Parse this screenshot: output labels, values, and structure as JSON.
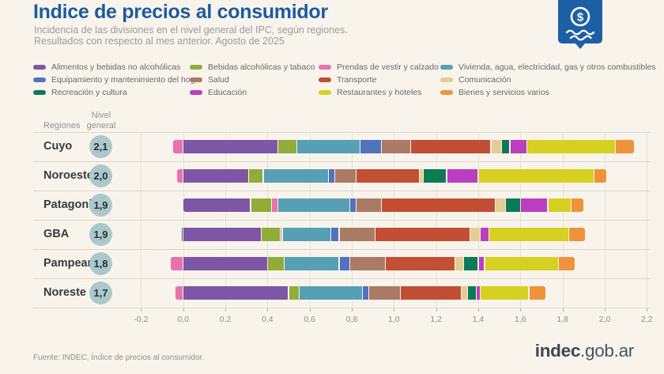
{
  "header": {
    "title": "Indice de precios al consumidor",
    "subtitle_line1": "Incidencia de las divisiones en el nivel general del IPC, según regiones.",
    "subtitle_line2": "Resultados con respecto al mes anterior. Agosto de 2025",
    "logo_symbol": "$",
    "logo_color": "#1c5fa5"
  },
  "table": {
    "col1_header": "Regiones",
    "col2_header_line1": "Nivel",
    "col2_header_line2": "general",
    "circle_color": "#abc9cc"
  },
  "chart_data": {
    "type": "bar",
    "orientation": "horizontal",
    "stacked": true,
    "grid": true,
    "x_axis": {
      "min": -0.2,
      "max": 2.2,
      "tick_values": [
        -0.2,
        0.0,
        0.2,
        0.4,
        0.6,
        0.8,
        1.0,
        1.2,
        1.4,
        1.6,
        1.8,
        2.0,
        2.2
      ],
      "tick_labels": [
        "-0,2",
        "0,0",
        "0,2",
        "0,4",
        "0,6",
        "0,8",
        "1,0",
        "1,2",
        "1,4",
        "1,6",
        "1,8",
        "2,0",
        "2,2"
      ]
    },
    "divisions": [
      {
        "name": "Alimentos y bebidas no alcohólicas",
        "color": "#7d57a6",
        "legend_column": 0
      },
      {
        "name": "Bebidas alcohólicas y tabaco",
        "color": "#90ad3a",
        "legend_column": 1
      },
      {
        "name": "Prendas de vestir y calzado",
        "color": "#e673ac",
        "legend_column": 2
      },
      {
        "name": "Vivienda, agua, electricidad, gas y otros combustibles",
        "color": "#579fb4",
        "legend_column": 3
      },
      {
        "name": "Equipamiento y mantenimiento del hogar",
        "color": "#5173bf",
        "legend_column": 0
      },
      {
        "name": "Salud",
        "color": "#ab7a64",
        "legend_column": 1
      },
      {
        "name": "Transporte",
        "color": "#c24e33",
        "legend_column": 2
      },
      {
        "name": "Comunicación",
        "color": "#e5cb94",
        "legend_column": 3
      },
      {
        "name": "Recreación y cultura",
        "color": "#0b7a55",
        "legend_column": 0
      },
      {
        "name": "Educación",
        "color": "#bb3ec0",
        "legend_column": 1
      },
      {
        "name": "Restaurantes y hoteles",
        "color": "#d6d121",
        "legend_column": 2
      },
      {
        "name": "Bienes y servicios varios",
        "color": "#f0923b",
        "legend_column": 3
      }
    ],
    "regions": [
      {
        "name": "Cuyo",
        "nivel_general": "2,1",
        "values": [
          0.45,
          0.09,
          -0.05,
          0.3,
          0.1,
          0.14,
          0.38,
          0.05,
          0.04,
          0.08,
          0.42,
          0.09
        ]
      },
      {
        "name": "Noroeste",
        "nivel_general": "2,0",
        "values": [
          0.31,
          0.07,
          -0.03,
          0.31,
          0.03,
          0.1,
          0.3,
          0.02,
          0.11,
          0.15,
          0.55,
          0.06
        ]
      },
      {
        "name": "Patagonia",
        "nivel_general": "1,9",
        "values": [
          0.32,
          0.1,
          0.03,
          0.34,
          0.03,
          0.12,
          0.54,
          0.05,
          0.07,
          0.13,
          0.11,
          0.06
        ]
      },
      {
        "name": "GBA",
        "nivel_general": "1,9",
        "values": [
          0.37,
          0.09,
          0.01,
          0.23,
          0.04,
          0.17,
          0.45,
          0.05,
          -0.01,
          0.04,
          0.38,
          0.08
        ]
      },
      {
        "name": "Pampeana",
        "nivel_general": "1,8",
        "values": [
          0.4,
          0.08,
          -0.06,
          0.26,
          0.05,
          0.17,
          0.33,
          0.04,
          0.07,
          0.03,
          0.35,
          0.08
        ]
      },
      {
        "name": "Noreste",
        "nivel_general": "1,7",
        "values": [
          0.5,
          0.05,
          -0.04,
          0.3,
          0.03,
          0.15,
          0.29,
          0.03,
          0.04,
          0.02,
          0.23,
          0.08
        ]
      }
    ],
    "legend_position": "top"
  },
  "footer": {
    "source": "Fuente: INDEC, Índice de precios al consumidor.",
    "brand_bold": "indec",
    "brand_rest": ".gob.ar"
  }
}
